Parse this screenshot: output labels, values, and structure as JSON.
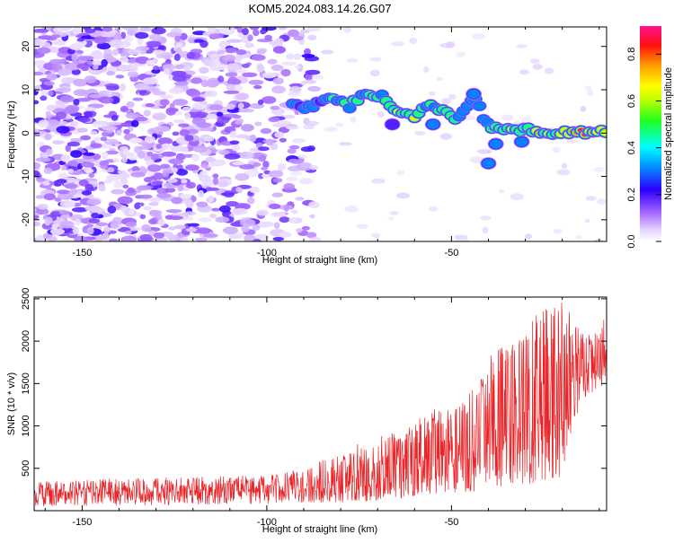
{
  "title": "KOM5.2024.083.14.26.G07",
  "colors": {
    "snr_line": "#e8262a",
    "axis": "#000000"
  },
  "chart_data": [
    {
      "type": "heatmap",
      "xlabel": "Height of straight line (km)",
      "ylabel": "Frequency (Hz)",
      "xlim": [
        -163,
        -8
      ],
      "ylim": [
        -25,
        24.5
      ],
      "x_ticks": [
        -150,
        -100,
        -50
      ],
      "x_tick_labels": [
        "-150",
        "-100",
        "-50"
      ],
      "y_ticks": [
        20,
        10,
        0,
        -10,
        -20
      ],
      "y_tick_labels": [
        "20",
        "10",
        "0",
        "-10",
        "-20"
      ],
      "colorbar": {
        "label": "Normalized spectral amplitude",
        "range": [
          0,
          0.92
        ],
        "ticks": [
          0.0,
          0.2,
          0.4,
          0.6,
          0.8
        ],
        "tick_labels": [
          "0.0",
          "0.2",
          "0.4",
          "0.6",
          "0.8"
        ],
        "colormap": "rainbow-white-to-magenta"
      },
      "ridge": [
        {
          "x": -93,
          "y": 6.2,
          "amp": 0.35
        },
        {
          "x": -88,
          "y": 6.0,
          "amp": 0.3
        },
        {
          "x": -82,
          "y": 8.5,
          "amp": 0.38
        },
        {
          "x": -78,
          "y": 6.0,
          "amp": 0.4
        },
        {
          "x": -74,
          "y": 9.0,
          "amp": 0.42
        },
        {
          "x": -69,
          "y": 8.5,
          "amp": 0.45
        },
        {
          "x": -66,
          "y": 5.0,
          "amp": 0.5
        },
        {
          "x": -60,
          "y": 4.0,
          "amp": 0.62
        },
        {
          "x": -56,
          "y": 6.5,
          "amp": 0.48
        },
        {
          "x": -53,
          "y": 5.5,
          "amp": 0.4
        },
        {
          "x": -49,
          "y": 3.0,
          "amp": 0.5
        },
        {
          "x": -44,
          "y": 8.5,
          "amp": 0.3
        },
        {
          "x": -40,
          "y": 1.5,
          "amp": 0.4
        },
        {
          "x": -34,
          "y": 0.5,
          "amp": 0.55
        },
        {
          "x": -29,
          "y": 0.8,
          "amp": 0.65
        },
        {
          "x": -24,
          "y": -0.8,
          "amp": 0.6
        },
        {
          "x": -20,
          "y": 0.0,
          "amp": 0.7
        },
        {
          "x": -16,
          "y": 0.0,
          "amp": 0.85
        },
        {
          "x": -12,
          "y": 0.3,
          "amp": 0.75
        },
        {
          "x": -8.5,
          "y": 0.5,
          "amp": 0.55
        }
      ],
      "noise_extent_x": -93
    },
    {
      "type": "line",
      "xlabel": "Height of straight line (km)",
      "ylabel": "SNR (10 * v/v)",
      "xlim": [
        -163,
        -8
      ],
      "ylim": [
        0,
        2520
      ],
      "x_ticks": [
        -150,
        -100,
        -50
      ],
      "x_tick_labels": [
        "-150",
        "-100",
        "-50"
      ],
      "y_ticks": [
        500,
        1000,
        1500,
        2000,
        2500
      ],
      "y_tick_labels": [
        "500",
        "1000",
        "1500",
        "2000",
        "2500"
      ],
      "series": [
        {
          "color": "#e8262a",
          "envelope_x": [
            -163,
            -140,
            -120,
            -100,
            -90,
            -80,
            -70,
            -62,
            -55,
            -50,
            -45,
            -40,
            -35,
            -30,
            -25,
            -20,
            -15,
            -10,
            -8
          ],
          "envelope_lo": [
            50,
            60,
            70,
            80,
            90,
            100,
            120,
            150,
            200,
            200,
            220,
            250,
            300,
            300,
            350,
            400,
            1300,
            1450,
            1500
          ],
          "envelope_hi": [
            350,
            380,
            400,
            420,
            500,
            700,
            900,
            1000,
            1200,
            1200,
            1400,
            1800,
            2000,
            2200,
            2400,
            2500,
            2100,
            2100,
            2400
          ]
        }
      ]
    }
  ]
}
